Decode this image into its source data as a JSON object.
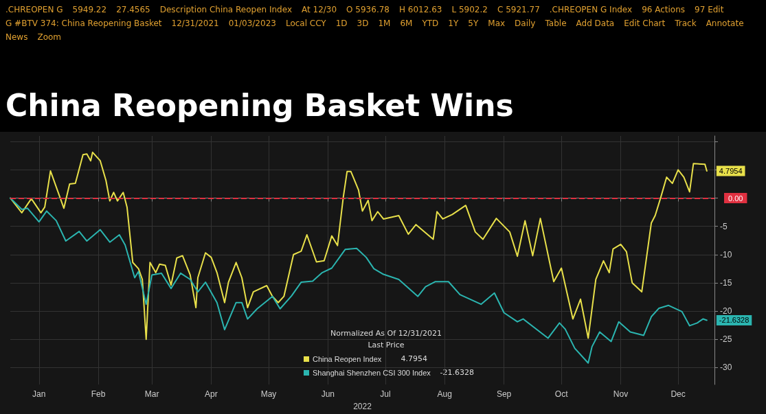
{
  "chart_data": {
    "type": "line",
    "title": "China Reopening Basket Wins",
    "xlabel": "2022",
    "legend_title": "Normalized As Of 12/31/2021",
    "annotations": [
      "Last Price",
      ".CHREOPEN G",
      "5949.22",
      "27.4565",
      "Description China Reopen Index",
      "At 12/30",
      "O 5936.78",
      "H 6012.63",
      "L 5902.2",
      "C 5921.77",
      ".CHREOPEN G Index",
      "96 Actions",
      "97 Edit",
      "G #BTV 374: China Reopening Basket",
      "12/31/2021",
      "01/03/2023",
      "Local CCY",
      "1D",
      "3D",
      "1M",
      "6M",
      "YTD",
      "1Y",
      "5Y",
      "Max",
      "Daily",
      "Table",
      "Add Data",
      "Edit Chart",
      "Track",
      "Annotate",
      "News",
      "Zoom"
    ],
    "xlim": [
      "2021-12-31",
      "2023-01-03"
    ],
    "xticks": [
      {
        "value": "2022-01-15",
        "label": "Jan"
      },
      {
        "value": "2022-02-15",
        "label": "Feb"
      },
      {
        "value": "2022-03-15",
        "label": "Mar"
      },
      {
        "value": "2022-04-15",
        "label": "Apr"
      },
      {
        "value": "2022-05-15",
        "label": "May"
      },
      {
        "value": "2022-06-15",
        "label": "Jun"
      },
      {
        "value": "2022-07-15",
        "label": "Jul"
      },
      {
        "value": "2022-08-15",
        "label": "Aug"
      },
      {
        "value": "2022-09-15",
        "label": "Sep"
      },
      {
        "value": "2022-10-15",
        "label": "Oct"
      },
      {
        "value": "2022-11-15",
        "label": "Nov"
      },
      {
        "value": "2022-12-15",
        "label": "Dec"
      }
    ],
    "ylim": [
      -33,
      11
    ],
    "yticks": [
      -30,
      -25,
      -20,
      -15,
      -10,
      -5,
      {
        "value": 0,
        "label": null
      },
      {
        "value": 5,
        "label": null
      },
      {
        "value": 10,
        "label": null
      }
    ],
    "grid": true,
    "legend": "bottom",
    "marker": "none",
    "line_style": "solid",
    "ref_lines": [
      {
        "axis": "y",
        "value": 0,
        "label": "0.00",
        "color": "#e03040",
        "line_style": "dashed"
      }
    ],
    "series": [
      {
        "name": "China Reopen Index",
        "color": "#e8e04a",
        "x": [
          "2021-12-31",
          "2022-01-06",
          "2022-01-11",
          "2022-01-16",
          "2022-01-18",
          "2022-01-21",
          "2022-01-28",
          "2022-01-31",
          "2022-02-03",
          "2022-02-07",
          "2022-02-09",
          "2022-02-11",
          "2022-02-12",
          "2022-02-16",
          "2022-02-19",
          "2022-02-21",
          "2022-02-23",
          "2022-02-25",
          "2022-02-28",
          "2022-03-02",
          "2022-03-05",
          "2022-03-08",
          "2022-03-10",
          "2022-03-12",
          "2022-03-14",
          "2022-03-17",
          "2022-03-19",
          "2022-03-22",
          "2022-03-25",
          "2022-03-28",
          "2022-03-31",
          "2022-04-04",
          "2022-04-07",
          "2022-04-08",
          "2022-04-12",
          "2022-04-15",
          "2022-04-18",
          "2022-04-22",
          "2022-04-24",
          "2022-04-28",
          "2022-05-01",
          "2022-05-04",
          "2022-05-07",
          "2022-05-14",
          "2022-05-17",
          "2022-05-20",
          "2022-05-23",
          "2022-05-28",
          "2022-06-01",
          "2022-06-04",
          "2022-06-09",
          "2022-06-13",
          "2022-06-17",
          "2022-06-20",
          "2022-06-23",
          "2022-06-25",
          "2022-06-27",
          "2022-07-01",
          "2022-07-03",
          "2022-07-06",
          "2022-07-08",
          "2022-07-11",
          "2022-07-14",
          "2022-07-22",
          "2022-07-27",
          "2022-07-31",
          "2022-08-09",
          "2022-08-11",
          "2022-08-14",
          "2022-08-19",
          "2022-08-26",
          "2022-08-31",
          "2022-09-04",
          "2022-09-11",
          "2022-09-18",
          "2022-09-22",
          "2022-09-26",
          "2022-09-30",
          "2022-10-04",
          "2022-10-11",
          "2022-10-15",
          "2022-10-21",
          "2022-10-25",
          "2022-10-29",
          "2022-11-02",
          "2022-11-06",
          "2022-11-09",
          "2022-11-11",
          "2022-11-15",
          "2022-11-18",
          "2022-11-21",
          "2022-11-26",
          "2022-12-01",
          "2022-12-03",
          "2022-12-06",
          "2022-12-09",
          "2022-12-12",
          "2022-12-15",
          "2022-12-18",
          "2022-12-21",
          "2022-12-23",
          "2022-12-29",
          "2022-12-30"
        ],
        "values": [
          0,
          -2.6,
          -0.1,
          -2.6,
          -1.6,
          4.8,
          -1.8,
          2.5,
          2.6,
          7.7,
          7.8,
          6.6,
          8.1,
          6.6,
          3.1,
          -0.5,
          1.0,
          -0.5,
          1.0,
          -1.6,
          -11.4,
          -12.5,
          -14.4,
          -25,
          -11.4,
          -13.2,
          -11.7,
          -11.9,
          -15.4,
          -10.6,
          -10.2,
          -13.6,
          -19.4,
          -14.1,
          -9.7,
          -10.5,
          -13.2,
          -18.5,
          -14.9,
          -11.4,
          -14.1,
          -19.4,
          -16.6,
          -15.5,
          -17.4,
          -18.5,
          -17.4,
          -10.0,
          -9.4,
          -6.5,
          -11.3,
          -11.1,
          -6.7,
          -8.4,
          0.1,
          4.7,
          4.7,
          1.4,
          -2.3,
          -0.4,
          -4.0,
          -2.4,
          -3.7,
          -3.1,
          -6.4,
          -4.7,
          -7.3,
          -2.4,
          -3.7,
          -2.9,
          -1.3,
          -6.0,
          -7.3,
          -3.6,
          -6.0,
          -10.3,
          -4.0,
          -10.2,
          -3.6,
          -14.8,
          -12.4,
          -21.4,
          -17.9,
          -24.8,
          -14.4,
          -11.1,
          -13.2,
          -9.0,
          -8.2,
          -9.5,
          -15.0,
          -16.6,
          -4.4,
          -3.1,
          0.2,
          3.7,
          2.6,
          5.0,
          3.7,
          1.1,
          6.1,
          6.0,
          4.7954
        ],
        "value_labels": [
          null,
          null,
          null,
          null,
          null,
          null,
          null,
          null,
          null,
          null,
          null,
          null,
          null,
          null,
          null,
          null,
          null,
          null,
          null,
          null,
          null,
          null,
          null,
          null,
          null,
          null,
          null,
          null,
          null,
          null,
          null,
          null,
          null,
          null,
          null,
          null,
          null,
          null,
          null,
          null,
          null,
          null,
          null,
          null,
          null,
          null,
          null,
          null,
          null,
          null,
          null,
          null,
          null,
          null,
          null,
          null,
          null,
          null,
          null,
          null,
          null,
          null,
          null,
          null,
          null,
          null,
          null,
          null,
          null,
          null,
          null,
          null,
          null,
          null,
          null,
          null,
          null,
          null,
          null,
          null,
          null,
          null,
          null,
          null,
          null,
          null,
          null,
          null,
          null,
          null,
          null,
          null,
          null,
          null,
          null,
          null,
          null,
          null,
          null,
          null,
          null,
          null,
          "4.7954"
        ]
      },
      {
        "name": "Shanghai Shenzhen CSI 300 Index",
        "color": "#2bb5b0",
        "x": [
          "2021-12-31",
          "2022-01-06",
          "2022-01-09",
          "2022-01-11",
          "2022-01-15",
          "2022-01-19",
          "2022-01-24",
          "2022-01-29",
          "2022-02-03",
          "2022-02-05",
          "2022-02-09",
          "2022-02-16",
          "2022-02-21",
          "2022-02-26",
          "2022-03-01",
          "2022-03-06",
          "2022-03-08",
          "2022-03-12",
          "2022-03-15",
          "2022-03-20",
          "2022-03-25",
          "2022-03-30",
          "2022-04-04",
          "2022-04-08",
          "2022-04-12",
          "2022-04-18",
          "2022-04-22",
          "2022-04-28",
          "2022-05-01",
          "2022-05-04",
          "2022-05-09",
          "2022-05-17",
          "2022-05-21",
          "2022-05-27",
          "2022-06-01",
          "2022-06-07",
          "2022-06-12",
          "2022-06-17",
          "2022-06-24",
          "2022-06-30",
          "2022-07-05",
          "2022-07-09",
          "2022-07-14",
          "2022-07-22",
          "2022-08-01",
          "2022-08-05",
          "2022-08-10",
          "2022-08-17",
          "2022-08-23",
          "2022-09-03",
          "2022-09-10",
          "2022-09-15",
          "2022-09-22",
          "2022-09-25",
          "2022-10-08",
          "2022-10-14",
          "2022-10-17",
          "2022-10-22",
          "2022-10-29",
          "2022-10-31",
          "2022-11-04",
          "2022-11-10",
          "2022-11-14",
          "2022-11-20",
          "2022-11-27",
          "2022-12-01",
          "2022-12-05",
          "2022-12-10",
          "2022-12-17",
          "2022-12-21",
          "2022-12-25",
          "2022-12-28",
          "2022-12-30"
        ],
        "values": [
          0,
          -2.0,
          -1.8,
          -2.6,
          -4.2,
          -2.3,
          -4.0,
          -7.6,
          -6.4,
          -5.9,
          -7.6,
          -5.6,
          -7.8,
          -6.5,
          -8.3,
          -14.1,
          -13.0,
          -18.8,
          -13.6,
          -13.3,
          -16.0,
          -13.3,
          -14.4,
          -16.6,
          -14.9,
          -18.5,
          -23.3,
          -18.5,
          -18.5,
          -21.4,
          -19.6,
          -17.4,
          -19.6,
          -17.3,
          -14.9,
          -14.7,
          -13.2,
          -12.4,
          -9.1,
          -8.9,
          -10.5,
          -12.5,
          -13.5,
          -14.4,
          -17.4,
          -15.7,
          -14.8,
          -14.8,
          -17.1,
          -18.8,
          -16.8,
          -20.3,
          -21.9,
          -21.4,
          -24.8,
          -22.1,
          -23.2,
          -26.6,
          -29.2,
          -26.3,
          -23.7,
          -25.4,
          -21.9,
          -23.7,
          -24.3,
          -21.0,
          -19.5,
          -19.0,
          -20.1,
          -22.6,
          -22.1,
          -21.4,
          -21.6328
        ],
        "value_labels": [
          null,
          null,
          null,
          null,
          null,
          null,
          null,
          null,
          null,
          null,
          null,
          null,
          null,
          null,
          null,
          null,
          null,
          null,
          null,
          null,
          null,
          null,
          null,
          null,
          null,
          null,
          null,
          null,
          null,
          null,
          null,
          null,
          null,
          null,
          null,
          null,
          null,
          null,
          null,
          null,
          null,
          null,
          null,
          null,
          null,
          null,
          null,
          null,
          null,
          null,
          null,
          null,
          null,
          null,
          null,
          null,
          null,
          null,
          null,
          null,
          null,
          null,
          null,
          null,
          null,
          null,
          null,
          null,
          null,
          null,
          null,
          null,
          "-21.6328"
        ]
      }
    ]
  }
}
